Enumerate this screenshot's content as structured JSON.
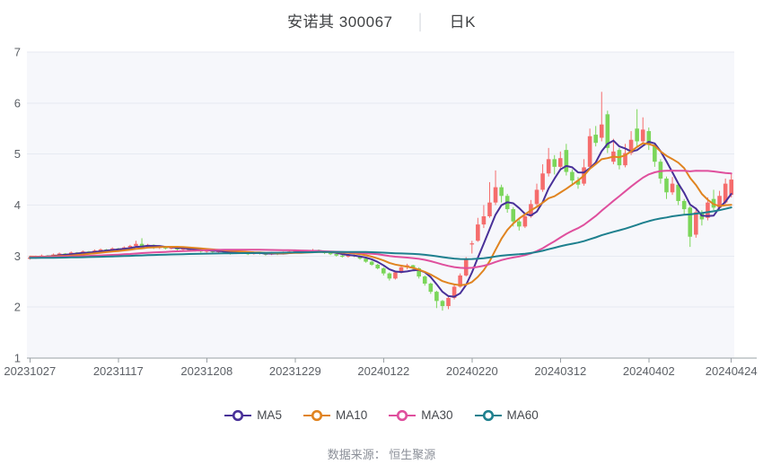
{
  "page": {
    "title_symbol": "安诺其 300067",
    "title_separator": "│",
    "title_period": "日K",
    "footer": "数据来源： 恒生聚源"
  },
  "chart_data": {
    "type": "candlestick",
    "title": "安诺其 300067 日K",
    "ylim": [
      1,
      7
    ],
    "y_ticks": [
      1,
      2,
      3,
      4,
      5,
      6,
      7
    ],
    "x_tick_labels": [
      "20231027",
      "20231117",
      "20231208",
      "20231229",
      "20240122",
      "20240220",
      "20240312",
      "20240402",
      "20240424"
    ],
    "x_tick_indices": [
      0,
      15,
      30,
      45,
      60,
      75,
      90,
      105,
      119
    ],
    "grid": true,
    "legend_position": "bottom",
    "up_color": "#f56c6c",
    "down_color": "#7bd65a",
    "plot_bg": "#f6f7fb",
    "grid_color": "#e7eaf2",
    "axis_color": "#9aa0a6",
    "label_color": "#5c6066",
    "candles_ohlc": [
      [
        2.95,
        2.99,
        2.93,
        2.97
      ],
      [
        2.97,
        3.01,
        2.95,
        2.99
      ],
      [
        2.99,
        3.03,
        2.98,
        3.01
      ],
      [
        3.01,
        3.02,
        2.97,
        3.0
      ],
      [
        3.0,
        3.05,
        2.99,
        3.03
      ],
      [
        3.03,
        3.07,
        3.01,
        3.05
      ],
      [
        3.05,
        3.06,
        3.01,
        3.04
      ],
      [
        3.04,
        3.09,
        3.03,
        3.07
      ],
      [
        3.07,
        3.08,
        3.03,
        3.06
      ],
      [
        3.06,
        3.11,
        3.05,
        3.09
      ],
      [
        3.09,
        3.1,
        3.05,
        3.08
      ],
      [
        3.08,
        3.13,
        3.07,
        3.11
      ],
      [
        3.11,
        3.15,
        3.09,
        3.13
      ],
      [
        3.13,
        3.14,
        3.09,
        3.12
      ],
      [
        3.12,
        3.17,
        3.11,
        3.15
      ],
      [
        3.15,
        3.16,
        3.11,
        3.14
      ],
      [
        3.14,
        3.19,
        3.13,
        3.17
      ],
      [
        3.17,
        3.22,
        3.15,
        3.2
      ],
      [
        3.2,
        3.3,
        3.18,
        3.24
      ],
      [
        3.24,
        3.35,
        3.16,
        3.18
      ],
      [
        3.18,
        3.24,
        3.16,
        3.22
      ],
      [
        3.22,
        3.23,
        3.14,
        3.16
      ],
      [
        3.16,
        3.21,
        3.14,
        3.19
      ],
      [
        3.19,
        3.2,
        3.13,
        3.15
      ],
      [
        3.15,
        3.19,
        3.13,
        3.17
      ],
      [
        3.17,
        3.18,
        3.11,
        3.13
      ],
      [
        3.13,
        3.17,
        3.11,
        3.15
      ],
      [
        3.15,
        3.16,
        3.09,
        3.11
      ],
      [
        3.11,
        3.15,
        3.09,
        3.13
      ],
      [
        3.13,
        3.14,
        3.07,
        3.09
      ],
      [
        3.09,
        3.13,
        3.07,
        3.11
      ],
      [
        3.11,
        3.12,
        3.06,
        3.08
      ],
      [
        3.08,
        3.12,
        3.06,
        3.1
      ],
      [
        3.1,
        3.11,
        3.05,
        3.07
      ],
      [
        3.07,
        3.08,
        3.03,
        3.05
      ],
      [
        3.05,
        3.1,
        3.04,
        3.08
      ],
      [
        3.08,
        3.09,
        3.04,
        3.06
      ],
      [
        3.06,
        3.07,
        3.02,
        3.04
      ],
      [
        3.04,
        3.09,
        3.03,
        3.07
      ],
      [
        3.07,
        3.08,
        3.03,
        3.05
      ],
      [
        3.05,
        3.06,
        3.01,
        3.03
      ],
      [
        3.03,
        3.08,
        3.02,
        3.06
      ],
      [
        3.06,
        3.07,
        3.02,
        3.04
      ],
      [
        3.04,
        3.09,
        3.03,
        3.07
      ],
      [
        3.07,
        3.11,
        3.05,
        3.09
      ],
      [
        3.09,
        3.13,
        3.07,
        3.11
      ],
      [
        3.11,
        3.12,
        3.06,
        3.08
      ],
      [
        3.08,
        3.12,
        3.06,
        3.1
      ],
      [
        3.1,
        3.14,
        3.08,
        3.12
      ],
      [
        3.12,
        3.13,
        3.07,
        3.09
      ],
      [
        3.09,
        3.1,
        3.04,
        3.06
      ],
      [
        3.06,
        3.08,
        3.02,
        3.04
      ],
      [
        3.04,
        3.05,
        2.99,
        3.01
      ],
      [
        3.01,
        3.03,
        2.97,
        2.99
      ],
      [
        2.99,
        3.04,
        2.97,
        3.02
      ],
      [
        3.02,
        3.03,
        2.98,
        3.0
      ],
      [
        3.0,
        3.01,
        2.93,
        2.95
      ],
      [
        2.95,
        2.97,
        2.87,
        2.89
      ],
      [
        2.89,
        2.91,
        2.81,
        2.83
      ],
      [
        2.83,
        2.85,
        2.74,
        2.76
      ],
      [
        2.76,
        2.78,
        2.62,
        2.66
      ],
      [
        2.66,
        2.68,
        2.52,
        2.56
      ],
      [
        2.56,
        2.7,
        2.54,
        2.68
      ],
      [
        2.68,
        2.8,
        2.66,
        2.78
      ],
      [
        2.78,
        2.85,
        2.74,
        2.82
      ],
      [
        2.82,
        2.83,
        2.72,
        2.76
      ],
      [
        2.76,
        2.78,
        2.56,
        2.6
      ],
      [
        2.6,
        2.62,
        2.42,
        2.46
      ],
      [
        2.46,
        2.48,
        2.26,
        2.3
      ],
      [
        2.3,
        2.32,
        1.98,
        2.12
      ],
      [
        2.12,
        2.14,
        1.93,
        2.02
      ],
      [
        2.02,
        2.22,
        1.96,
        2.18
      ],
      [
        2.18,
        2.44,
        2.15,
        2.4
      ],
      [
        2.4,
        2.66,
        2.38,
        2.62
      ],
      [
        2.62,
        2.98,
        2.6,
        2.95
      ],
      [
        3.25,
        3.3,
        3.05,
        3.25
      ],
      [
        3.3,
        3.75,
        3.28,
        3.62
      ],
      [
        3.62,
        4.0,
        3.55,
        3.78
      ],
      [
        3.78,
        4.45,
        3.75,
        4.05
      ],
      [
        4.05,
        4.68,
        4.0,
        4.35
      ],
      [
        4.35,
        4.4,
        4.05,
        4.18
      ],
      [
        4.18,
        4.22,
        3.85,
        3.92
      ],
      [
        3.92,
        3.96,
        3.58,
        3.68
      ],
      [
        3.68,
        3.72,
        3.5,
        3.58
      ],
      [
        3.58,
        3.85,
        3.55,
        3.78
      ],
      [
        3.78,
        4.1,
        3.75,
        4.02
      ],
      [
        4.02,
        4.42,
        3.98,
        4.3
      ],
      [
        4.3,
        4.8,
        4.26,
        4.62
      ],
      [
        4.62,
        5.12,
        4.56,
        4.9
      ],
      [
        4.9,
        4.98,
        4.6,
        4.75
      ],
      [
        4.75,
        5.05,
        4.68,
        4.92
      ],
      [
        5.08,
        5.2,
        4.58,
        4.65
      ],
      [
        4.65,
        4.7,
        4.38,
        4.48
      ],
      [
        4.48,
        4.55,
        4.32,
        4.4
      ],
      [
        4.42,
        4.9,
        4.38,
        4.74
      ],
      [
        4.75,
        5.5,
        4.7,
        5.35
      ],
      [
        5.38,
        5.55,
        5.15,
        5.22
      ],
      [
        5.32,
        6.22,
        5.25,
        5.58
      ],
      [
        5.78,
        5.85,
        5.02,
        5.12
      ],
      [
        4.85,
        5.3,
        4.8,
        5.05
      ],
      [
        5.08,
        5.12,
        4.7,
        4.78
      ],
      [
        4.78,
        5.2,
        4.74,
        5.02
      ],
      [
        5.02,
        5.45,
        4.98,
        5.28
      ],
      [
        5.5,
        5.88,
        5.15,
        5.25
      ],
      [
        5.25,
        5.72,
        5.2,
        5.48
      ],
      [
        5.45,
        5.52,
        5.08,
        5.18
      ],
      [
        5.18,
        5.22,
        4.75,
        4.85
      ],
      [
        4.85,
        4.9,
        4.42,
        4.52
      ],
      [
        4.52,
        4.56,
        4.12,
        4.25
      ],
      [
        4.25,
        4.55,
        4.2,
        4.42
      ],
      [
        4.4,
        4.44,
        4.0,
        4.08
      ],
      [
        4.08,
        4.12,
        3.8,
        3.92
      ],
      [
        3.95,
        3.98,
        3.18,
        3.38
      ],
      [
        3.42,
        3.95,
        3.36,
        3.86
      ],
      [
        3.86,
        3.9,
        3.6,
        3.72
      ],
      [
        3.75,
        4.15,
        3.7,
        4.05
      ],
      [
        4.12,
        4.3,
        3.9,
        3.95
      ],
      [
        3.95,
        4.28,
        3.92,
        4.18
      ],
      [
        4.05,
        4.52,
        4.02,
        4.42
      ],
      [
        4.2,
        4.62,
        4.15,
        4.5
      ]
    ],
    "pre_window_closes_est": [
      2.96,
      2.94,
      2.92,
      2.95,
      2.97,
      2.93,
      2.91,
      2.94,
      2.96,
      2.92,
      2.9,
      2.93,
      2.95,
      2.91,
      2.94,
      2.96,
      2.98,
      2.95,
      2.93,
      2.96,
      2.98,
      2.94,
      2.92,
      2.95,
      2.97,
      2.99,
      2.96,
      2.94,
      2.97,
      2.99,
      2.95,
      2.93,
      2.96,
      2.98,
      3.0,
      2.97,
      2.95,
      2.98,
      3.0,
      2.96,
      2.94,
      2.97,
      2.99,
      3.01,
      2.98,
      2.96,
      2.99,
      3.01,
      2.97,
      2.95,
      2.98,
      3.0,
      3.02,
      2.99,
      2.97,
      3.0,
      3.02,
      2.98,
      2.96,
      2.99
    ],
    "ma_series": [
      {
        "name": "MA5",
        "window": 5,
        "color": "#483098"
      },
      {
        "name": "MA10",
        "window": 10,
        "color": "#e08420"
      },
      {
        "name": "MA30",
        "window": 30,
        "color": "#df4f9d"
      },
      {
        "name": "MA60",
        "window": 60,
        "color": "#1e808e"
      }
    ]
  }
}
